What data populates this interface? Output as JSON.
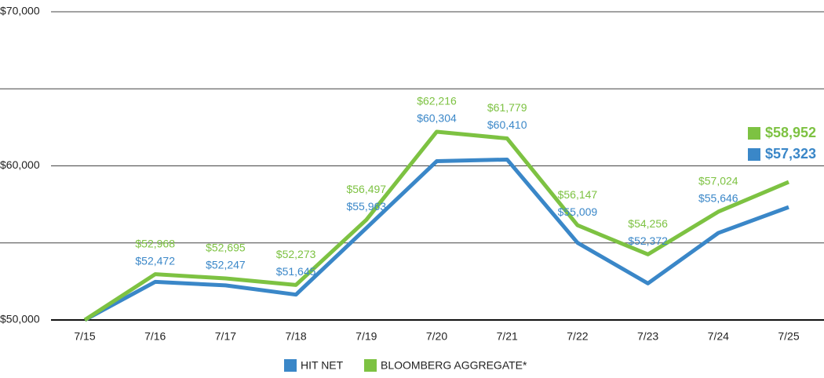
{
  "chart_data": {
    "type": "line",
    "categories": [
      "7/15",
      "7/16",
      "7/17",
      "7/18",
      "7/19",
      "7/20",
      "7/21",
      "7/22",
      "7/23",
      "7/24",
      "7/25"
    ],
    "series": [
      {
        "name": "HIT NET",
        "color": "#3a87c8",
        "values": [
          50000,
          52472,
          52247,
          51645,
          55963,
          60304,
          60410,
          55009,
          52372,
          55646,
          57323
        ],
        "value_labels": [
          null,
          "$52,472",
          "$52,247",
          "$51,645",
          "$55,963",
          "$60,304",
          "$60,410",
          "$55,009",
          "$52,372",
          "$55,646",
          "$57,323"
        ]
      },
      {
        "name": "BLOOMBERG AGGREGATE*",
        "color": "#7dc242",
        "values": [
          50000,
          52968,
          52695,
          52273,
          56497,
          62216,
          61779,
          56147,
          54256,
          57024,
          58952
        ],
        "value_labels": [
          null,
          "$52,968",
          "$52,695",
          "$52,273",
          "$56,497",
          "$62,216",
          "$61,779",
          "$56,147",
          "$54,256",
          "$57,024",
          "$58,952"
        ]
      }
    ],
    "ylim": [
      50000,
      70000
    ],
    "yticks": [
      {
        "value": 50000,
        "label": "$50,000"
      },
      {
        "value": 60000,
        "label": "$60,000"
      },
      {
        "value": 70000,
        "label": "$70,000"
      }
    ],
    "minor_grid": [
      55000,
      65000
    ],
    "grid": true
  }
}
